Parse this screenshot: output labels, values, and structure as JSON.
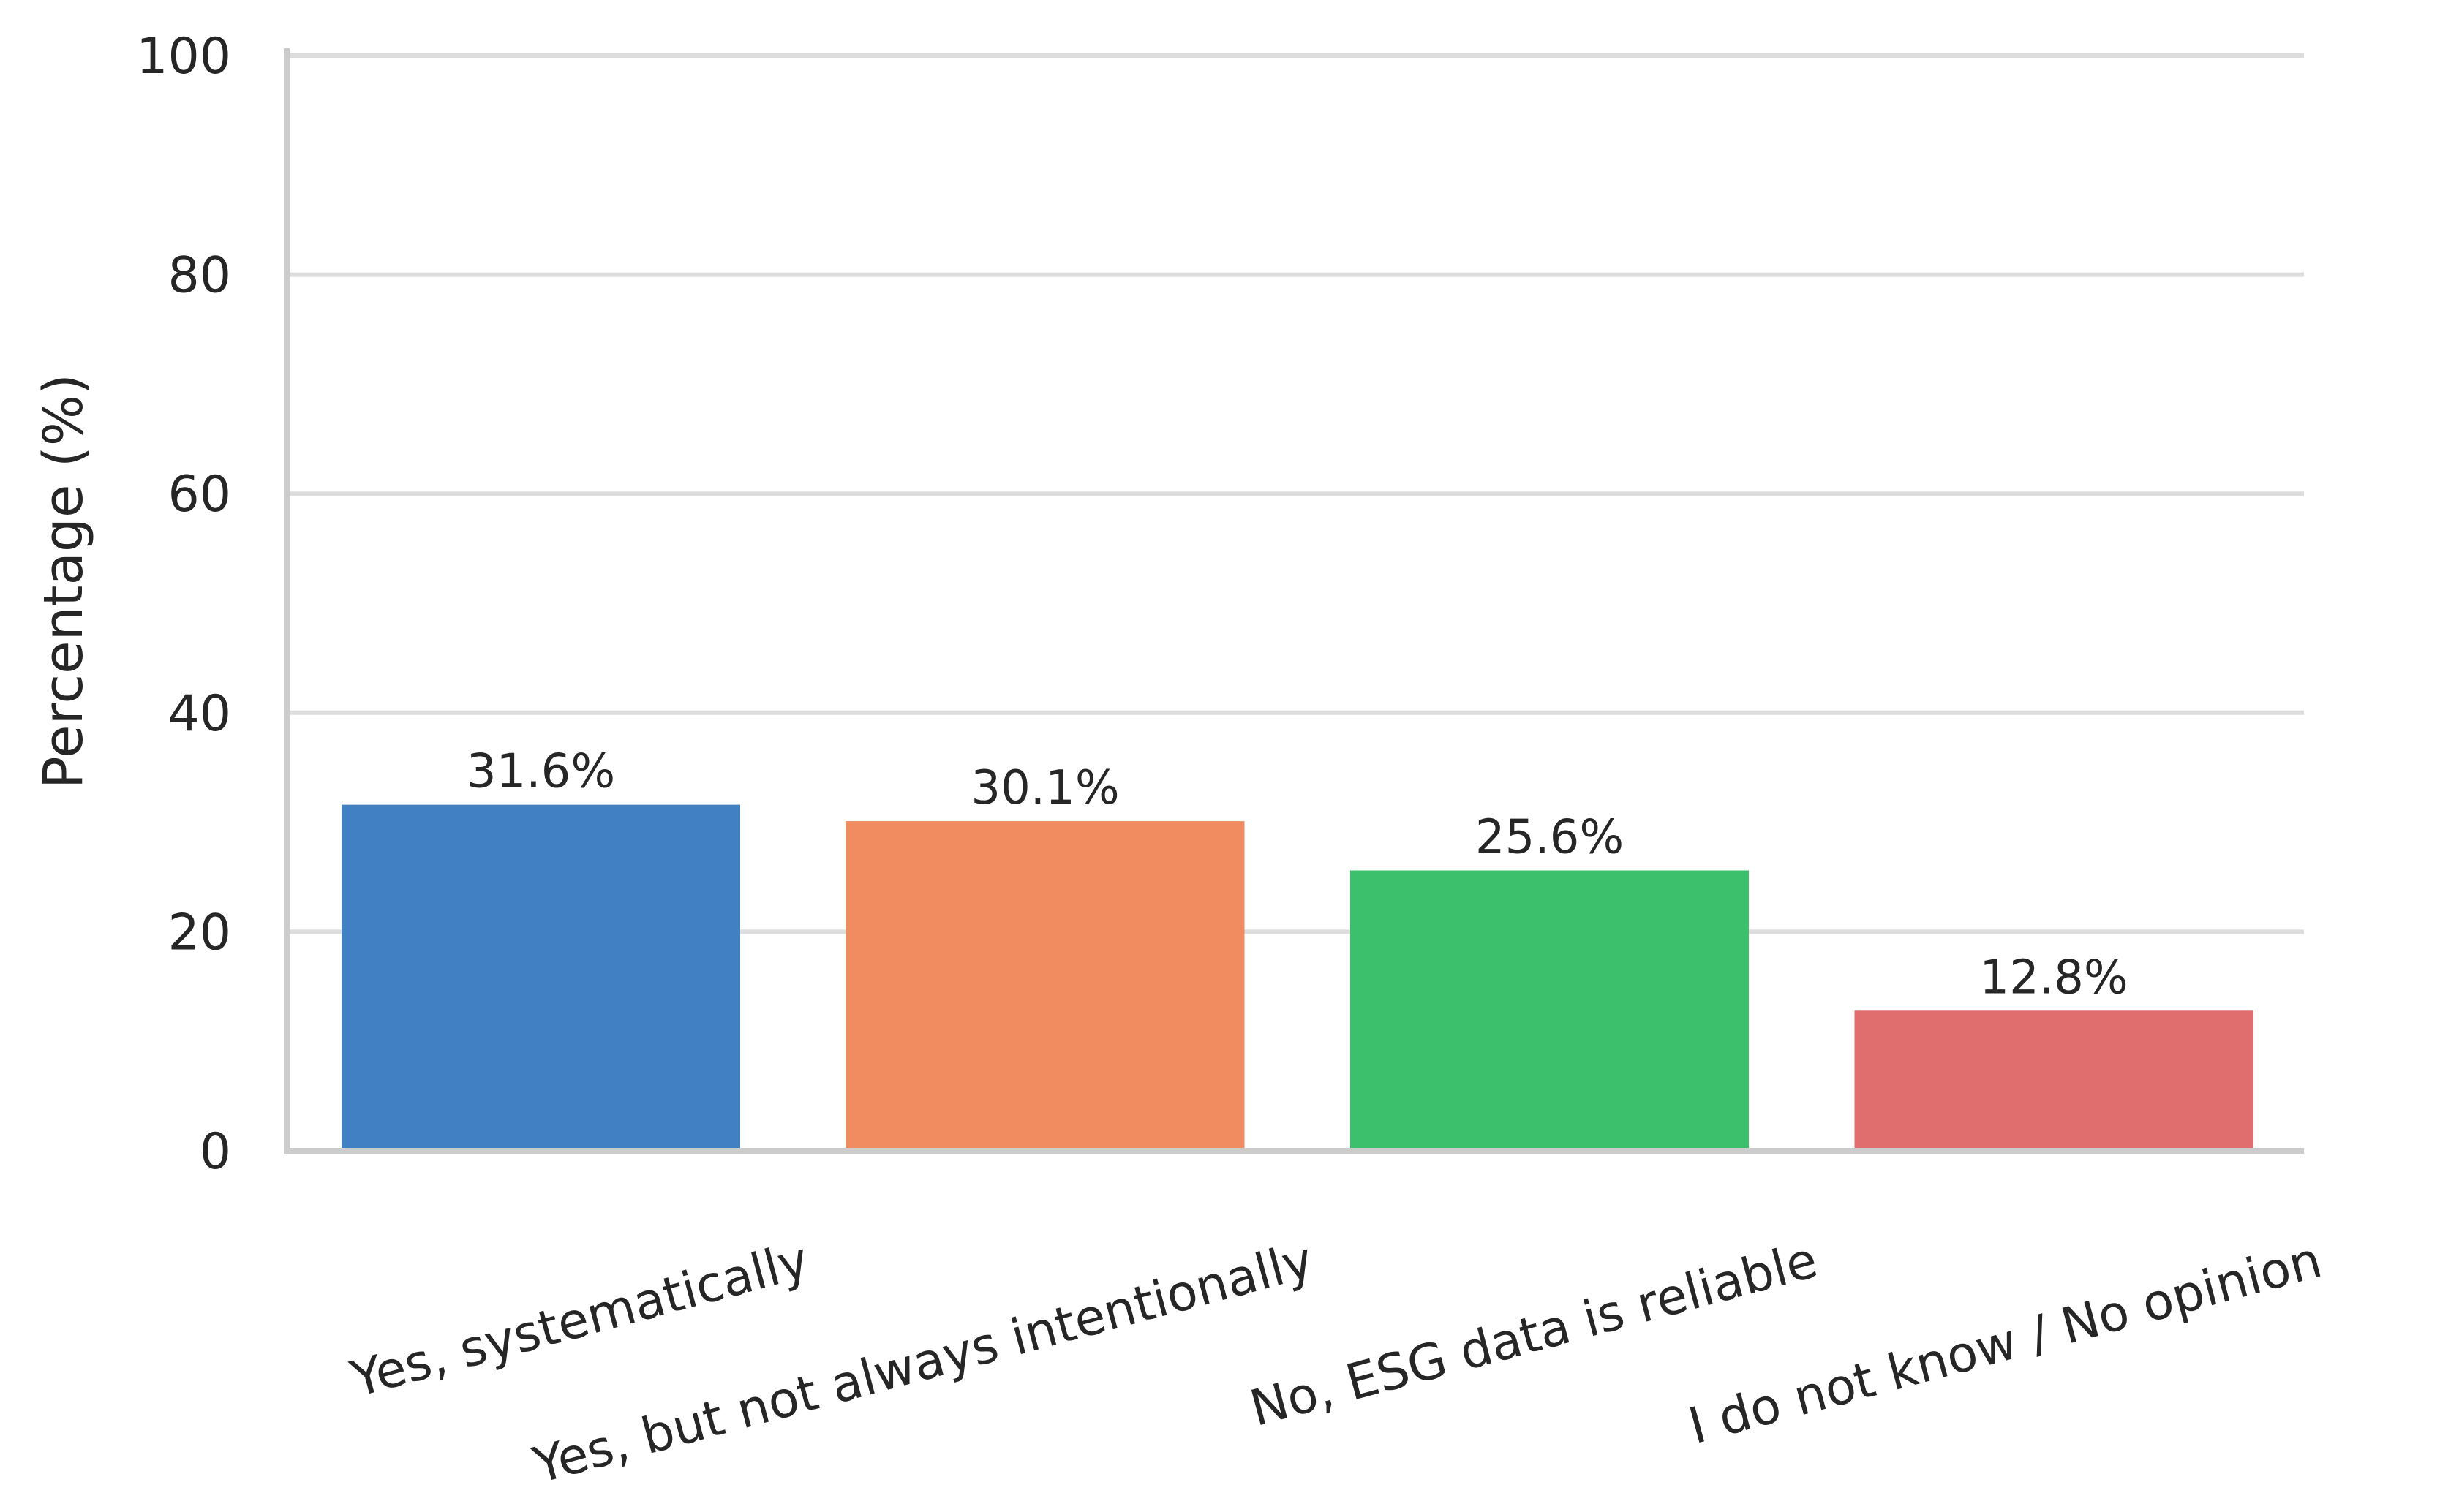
{
  "chart_data": {
    "type": "bar",
    "title": "",
    "xlabel": "",
    "ylabel": "Percentage (%)",
    "ylim": [
      0,
      100
    ],
    "yticks": [
      0,
      20,
      40,
      60,
      80,
      100
    ],
    "grid": "horizontal",
    "legend": "none",
    "categories": [
      "Yes, systematically",
      "Yes, but not always intentionally",
      "No, ESG data is reliable",
      "I do not know / No opinion"
    ],
    "values": [
      31.6,
      30.1,
      25.6,
      12.8
    ],
    "data_labels": [
      "31.6%",
      "30.1%",
      "25.6%",
      "12.8%"
    ],
    "colors": [
      "#4280c4",
      "#f08c60",
      "#3cc06c",
      "#e06e6e"
    ],
    "grid_color": "#dddddd",
    "axis_color": "#cccccc"
  }
}
